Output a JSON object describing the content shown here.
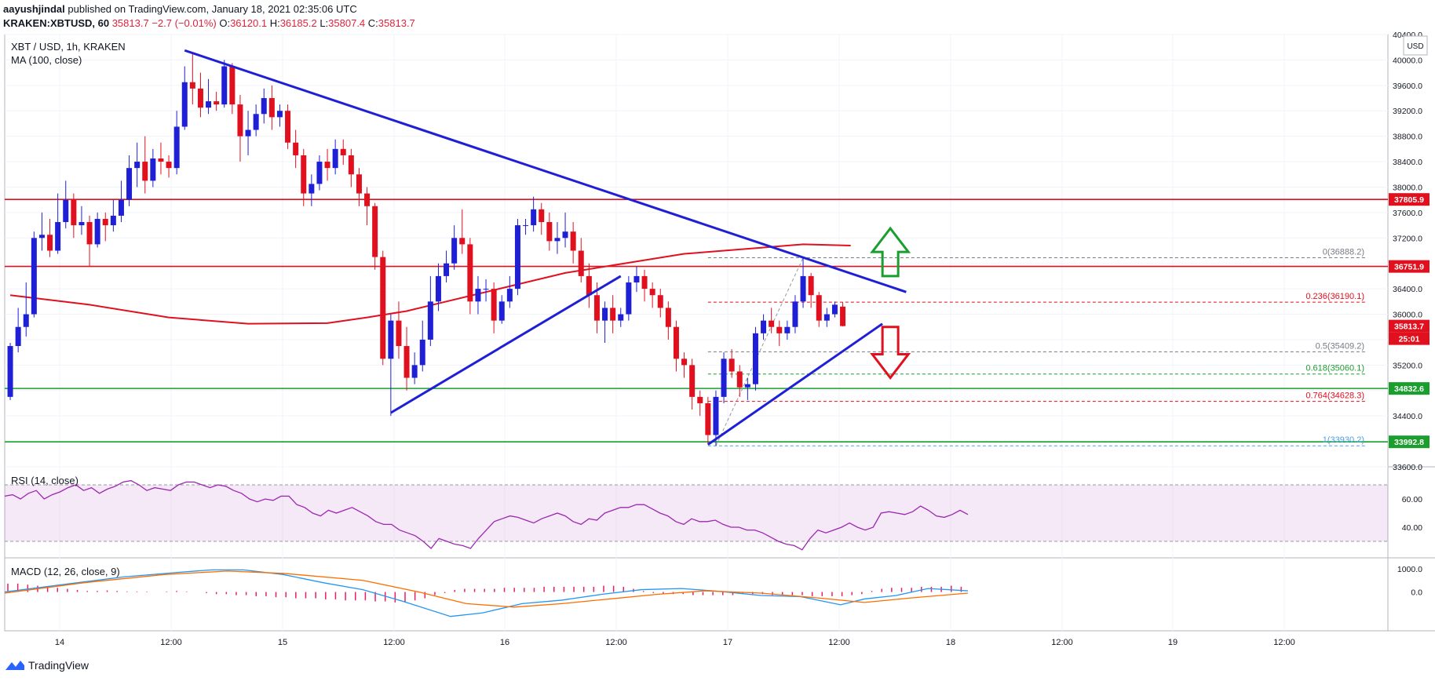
{
  "header": {
    "publisher": "aayushjindal",
    "published_text": "published on TradingView.com, January 18, 2021 02:35:06 UTC",
    "symbol_line": "KRAKEN:XBTUSD, 60",
    "last": "35813.7",
    "change": "−2.7 (−0.01%)",
    "O": "36120.1",
    "H": "36185.2",
    "L": "35807.4",
    "C": "35813.7"
  },
  "footer": {
    "brand": "TradingView",
    "logo_icon": "tradingview-logo-icon"
  },
  "chart_data": {
    "type": "candlestick",
    "title": "XBT / USD, 1h, KRAKEN",
    "indicator_label": "MA (100, close)",
    "currency_label": "USD",
    "ylim": [
      33600,
      40400
    ],
    "y_ticks": [
      33600,
      34000,
      34400,
      34800,
      35200,
      35600,
      36000,
      36400,
      36800,
      37200,
      37600,
      38000,
      38400,
      38800,
      39200,
      39600,
      40000,
      40400
    ],
    "x_ticks": [
      "14",
      "12:00",
      "15",
      "12:00",
      "16",
      "12:00",
      "17",
      "12:00",
      "18",
      "12:00",
      "19",
      "12:00"
    ],
    "colors": {
      "up": "#1f1fd6",
      "down": "#e0101f",
      "ma": "#e0101f",
      "trend": "#1f1fd6",
      "support": "#1a9e2e",
      "resistance": "#e0101f"
    },
    "candles": [
      [
        34700,
        35500,
        34650,
        35550
      ],
      [
        35500,
        35800,
        35400,
        36100
      ],
      [
        35800,
        36000,
        35650,
        36500
      ],
      [
        36000,
        37200,
        35950,
        37300
      ],
      [
        37200,
        37250,
        37000,
        37600
      ],
      [
        37250,
        37000,
        36900,
        37500
      ],
      [
        37000,
        37450,
        36950,
        37900
      ],
      [
        37450,
        37800,
        37350,
        38100
      ],
      [
        37800,
        37400,
        37200,
        37900
      ],
      [
        37400,
        37450,
        37250,
        37700
      ],
      [
        37450,
        37100,
        36750,
        37550
      ],
      [
        37100,
        37500,
        37050,
        37600
      ],
      [
        37500,
        37400,
        37150,
        37600
      ],
      [
        37400,
        37550,
        37300,
        37800
      ],
      [
        37550,
        37800,
        37450,
        38100
      ],
      [
        37800,
        38300,
        37700,
        38500
      ],
      [
        38300,
        38400,
        38000,
        38700
      ],
      [
        38400,
        38100,
        37900,
        38800
      ],
      [
        38100,
        38450,
        38000,
        38600
      ],
      [
        38450,
        38400,
        38200,
        38700
      ],
      [
        38400,
        38300,
        38150,
        38500
      ],
      [
        38300,
        38950,
        38200,
        39200
      ],
      [
        38950,
        39650,
        38900,
        39900
      ],
      [
        39650,
        39550,
        39300,
        40100
      ],
      [
        39550,
        39250,
        39100,
        39800
      ],
      [
        39250,
        39350,
        39150,
        39700
      ],
      [
        39350,
        39300,
        39200,
        39500
      ],
      [
        39300,
        39900,
        39250,
        40000
      ],
      [
        39900,
        39300,
        39150,
        39950
      ],
      [
        39300,
        38800,
        38400,
        39450
      ],
      [
        38800,
        38900,
        38500,
        39200
      ],
      [
        38900,
        39150,
        38800,
        39300
      ],
      [
        39150,
        39400,
        39000,
        39550
      ],
      [
        39400,
        39100,
        38900,
        39600
      ],
      [
        39100,
        39200,
        38950,
        39300
      ],
      [
        39200,
        38700,
        38600,
        39300
      ],
      [
        38700,
        38500,
        38300,
        38900
      ],
      [
        38500,
        37900,
        37700,
        38600
      ],
      [
        37900,
        38050,
        37700,
        38200
      ],
      [
        38050,
        38400,
        37950,
        38500
      ],
      [
        38400,
        38300,
        38100,
        38600
      ],
      [
        38300,
        38600,
        38200,
        38750
      ],
      [
        38600,
        38500,
        38350,
        38750
      ],
      [
        38500,
        38200,
        38000,
        38600
      ],
      [
        38200,
        37900,
        37700,
        38300
      ],
      [
        37900,
        37700,
        37400,
        38000
      ],
      [
        37700,
        36900,
        36700,
        37750
      ],
      [
        36900,
        35300,
        35200,
        37000
      ],
      [
        35300,
        35900,
        34400,
        36000
      ],
      [
        35900,
        35500,
        35300,
        36200
      ],
      [
        35500,
        35000,
        34800,
        35800
      ],
      [
        35000,
        35200,
        34900,
        35400
      ],
      [
        35200,
        35600,
        35100,
        35900
      ],
      [
        35600,
        36200,
        35500,
        36600
      ],
      [
        36200,
        36600,
        36050,
        36800
      ],
      [
        36600,
        36800,
        36500,
        37000
      ],
      [
        36800,
        37200,
        36700,
        37400
      ],
      [
        37200,
        37100,
        36950,
        37650
      ],
      [
        37100,
        36200,
        36000,
        37200
      ],
      [
        36200,
        36400,
        36000,
        36600
      ],
      [
        36400,
        36400,
        36200,
        36550
      ],
      [
        36400,
        35900,
        35700,
        36500
      ],
      [
        35900,
        36200,
        35850,
        36300
      ],
      [
        36200,
        36400,
        36100,
        36600
      ],
      [
        36400,
        37400,
        36300,
        37500
      ],
      [
        37400,
        37400,
        37250,
        37500
      ],
      [
        37400,
        37650,
        37300,
        37850
      ],
      [
        37650,
        37450,
        37250,
        37750
      ],
      [
        37450,
        37150,
        37000,
        37600
      ],
      [
        37150,
        37200,
        36950,
        37450
      ],
      [
        37200,
        37300,
        37050,
        37600
      ],
      [
        37300,
        37000,
        36800,
        37450
      ],
      [
        37000,
        36600,
        36500,
        37200
      ],
      [
        36600,
        36300,
        36100,
        36800
      ],
      [
        36300,
        35900,
        35700,
        36500
      ],
      [
        35900,
        36100,
        35550,
        36200
      ],
      [
        36100,
        35900,
        35700,
        36300
      ],
      [
        35900,
        36000,
        35800,
        36100
      ],
      [
        36000,
        36500,
        35900,
        36600
      ],
      [
        36500,
        36600,
        36350,
        36750
      ],
      [
        36600,
        36400,
        36200,
        36700
      ],
      [
        36400,
        36300,
        36100,
        36500
      ],
      [
        36300,
        36100,
        35950,
        36400
      ],
      [
        36100,
        35800,
        35600,
        36200
      ],
      [
        35800,
        35300,
        35100,
        35900
      ],
      [
        35300,
        35200,
        35000,
        35400
      ],
      [
        35200,
        34700,
        34500,
        35300
      ],
      [
        34700,
        34600,
        34400,
        34800
      ],
      [
        34600,
        34100,
        33950,
        34700
      ],
      [
        34100,
        34700,
        33930,
        34800
      ],
      [
        34700,
        35300,
        34600,
        35400
      ],
      [
        35300,
        35100,
        35000,
        35450
      ],
      [
        35100,
        34850,
        34700,
        35200
      ],
      [
        34850,
        34900,
        34650,
        35000
      ],
      [
        34900,
        35700,
        34800,
        35800
      ],
      [
        35700,
        35900,
        35600,
        36000
      ],
      [
        35900,
        35800,
        35700,
        36100
      ],
      [
        35800,
        35700,
        35500,
        35900
      ],
      [
        35700,
        35800,
        35600,
        35900
      ],
      [
        35800,
        36200,
        35700,
        36300
      ],
      [
        36200,
        36600,
        36100,
        36888
      ],
      [
        36600,
        36300,
        36100,
        36650
      ],
      [
        36300,
        35900,
        35800,
        36350
      ],
      [
        35900,
        36000,
        35800,
        36100
      ],
      [
        36000,
        36150,
        35950,
        36200
      ],
      [
        36120,
        35813.7,
        35807.4,
        36185.2
      ]
    ],
    "ma100": [
      [
        0,
        36300
      ],
      [
        10,
        36150
      ],
      [
        20,
        35950
      ],
      [
        30,
        35850
      ],
      [
        40,
        35860
      ],
      [
        45,
        35950
      ],
      [
        50,
        36050
      ],
      [
        55,
        36200
      ],
      [
        60,
        36350
      ],
      [
        65,
        36500
      ],
      [
        70,
        36650
      ],
      [
        75,
        36750
      ],
      [
        80,
        36850
      ],
      [
        85,
        36950
      ],
      [
        90,
        37000
      ],
      [
        95,
        37050
      ],
      [
        100,
        37100
      ],
      [
        106,
        37080
      ]
    ],
    "horizontal_levels": [
      {
        "value": 37805.9,
        "label": "37805.9",
        "color": "#e0101f"
      },
      {
        "value": 36751.9,
        "label": "36751.9",
        "color": "#e0101f"
      },
      {
        "value": 34832.6,
        "label": "34832.6",
        "color": "#1a9e2e"
      },
      {
        "value": 33992.8,
        "label": "33992.8",
        "color": "#1a9e2e"
      }
    ],
    "last_price_label": "35813.7",
    "countdown_label": "25:01",
    "fibonacci": [
      {
        "ratio": "0",
        "value": 36888.2,
        "label": "0(36888.2)",
        "color": "#787b86"
      },
      {
        "ratio": "0.236",
        "value": 36190.1,
        "label": "0.236(36190.1)",
        "color": "#e0101f"
      },
      {
        "ratio": "0.5",
        "value": 35409.2,
        "label": "0.5(35409.2)",
        "color": "#787b86"
      },
      {
        "ratio": "0.618",
        "value": 35060.1,
        "label": "0.618(35060.1)",
        "color": "#1a9e2e"
      },
      {
        "ratio": "0.764",
        "value": 34628.3,
        "label": "0.764(34628.3)",
        "color": "#e0101f"
      },
      {
        "ratio": "1",
        "value": 33930.2,
        "label": "1(33930.2)",
        "color": "#4b9fe0"
      }
    ],
    "trend_lines": [
      {
        "name": "falling-resistance",
        "from": [
          22,
          40150
        ],
        "to": [
          113,
          36350
        ]
      },
      {
        "name": "support-left",
        "from": [
          48,
          34450
        ],
        "to": [
          77,
          36600
        ]
      },
      {
        "name": "support-right",
        "from": [
          88,
          33950
        ],
        "to": [
          110,
          35850
        ]
      }
    ],
    "arrows": [
      {
        "direction": "up",
        "color": "#1a9e2e",
        "x": 111,
        "y_from": 36600,
        "y_to": 37350
      },
      {
        "direction": "down",
        "color": "#e0101f",
        "x": 111,
        "y_from": 35800,
        "y_to": 35000
      }
    ],
    "rsi": {
      "label": "RSI (14, close)",
      "ticks": [
        40,
        60
      ],
      "band": [
        30,
        70
      ],
      "values": [
        62,
        63,
        60,
        64,
        66,
        60,
        63,
        65,
        68,
        70,
        66,
        68,
        64,
        67,
        69,
        72,
        73,
        70,
        66,
        68,
        67,
        66,
        70,
        72,
        72,
        70,
        68,
        70,
        69,
        66,
        64,
        60,
        58,
        60,
        59,
        62,
        62,
        56,
        54,
        50,
        48,
        52,
        50,
        52,
        54,
        51,
        48,
        44,
        42,
        42,
        38,
        36,
        34,
        30,
        25,
        32,
        30,
        28,
        27,
        25,
        32,
        38,
        44,
        46,
        48,
        47,
        45,
        43,
        46,
        48,
        50,
        48,
        44,
        42,
        46,
        45,
        50,
        52,
        54,
        54,
        56,
        56,
        53,
        50,
        48,
        44,
        42,
        46,
        44,
        44,
        45,
        42,
        40,
        40,
        38,
        38,
        36,
        33,
        30,
        28,
        27,
        24,
        32,
        38,
        36,
        38,
        40,
        43,
        40,
        38,
        40,
        50,
        51,
        50,
        49,
        51,
        55,
        52,
        48,
        47,
        49,
        52,
        49
      ]
    },
    "macd": {
      "label": "MACD (12, 26, close, 9)",
      "ticks": [
        "1000.0",
        "0.0"
      ],
      "tick_values": [
        1000,
        0
      ],
      "ylim": [
        -1600,
        1300
      ],
      "macd_line": [
        [
          0,
          0
        ],
        [
          8,
          350
        ],
        [
          15,
          650
        ],
        [
          22,
          850
        ],
        [
          26,
          950
        ],
        [
          30,
          950
        ],
        [
          35,
          750
        ],
        [
          40,
          400
        ],
        [
          45,
          100
        ],
        [
          50,
          -400
        ],
        [
          56,
          -1050
        ],
        [
          60,
          -900
        ],
        [
          65,
          -500
        ],
        [
          70,
          -350
        ],
        [
          75,
          -100
        ],
        [
          80,
          100
        ],
        [
          85,
          150
        ],
        [
          90,
          20
        ],
        [
          95,
          -150
        ],
        [
          100,
          -200
        ],
        [
          105,
          -550
        ],
        [
          108,
          -300
        ],
        [
          112,
          -150
        ],
        [
          116,
          150
        ],
        [
          121,
          50
        ]
      ],
      "signal_line": [
        [
          0,
          -50
        ],
        [
          10,
          400
        ],
        [
          20,
          750
        ],
        [
          28,
          900
        ],
        [
          35,
          800
        ],
        [
          45,
          500
        ],
        [
          52,
          0
        ],
        [
          58,
          -500
        ],
        [
          64,
          -650
        ],
        [
          70,
          -500
        ],
        [
          76,
          -300
        ],
        [
          82,
          -100
        ],
        [
          88,
          50
        ],
        [
          95,
          -50
        ],
        [
          102,
          -250
        ],
        [
          108,
          -450
        ],
        [
          114,
          -250
        ],
        [
          121,
          -50
        ]
      ],
      "histogram": [
        0.8,
        0.8,
        0.7,
        0.6,
        0.5,
        0.4,
        0.3,
        0.2,
        0.1,
        0.1,
        0.15,
        0.1,
        0.05,
        0.05,
        0.05,
        0,
        0.05,
        0.1,
        0.05,
        0,
        -0.1,
        -0.2,
        -0.2,
        -0.3,
        -0.3,
        -0.4,
        -0.4,
        -0.5,
        -0.5,
        -0.6,
        -0.6,
        -0.6,
        -0.7,
        -0.7,
        -0.8,
        -0.8,
        -0.8,
        -0.9,
        -0.9,
        -1,
        -1,
        -0.8,
        -0.6,
        -0.3,
        -0.1,
        0.2,
        0.3,
        0.3,
        0.3,
        0.3,
        0.4,
        0.4,
        0.4,
        0.4,
        0.5,
        0.5,
        0.5,
        0.5,
        0.5,
        0.5,
        0.6,
        0.6,
        0.5,
        0.3,
        0.1,
        -0.1,
        -0.2,
        -0.2,
        -0.2,
        -0.3,
        -0.3,
        -0.3,
        -0.3,
        -0.3,
        -0.2,
        -0.2,
        -0.2,
        -0.3,
        -0.3,
        -0.3,
        -0.3,
        -0.4,
        -0.4,
        -0.4,
        -0.4,
        -0.3,
        -0.2,
        0.1,
        0.3,
        0.4,
        0.4,
        0.4,
        0.5,
        0.5,
        0.5,
        0.6,
        0.5
      ]
    }
  }
}
